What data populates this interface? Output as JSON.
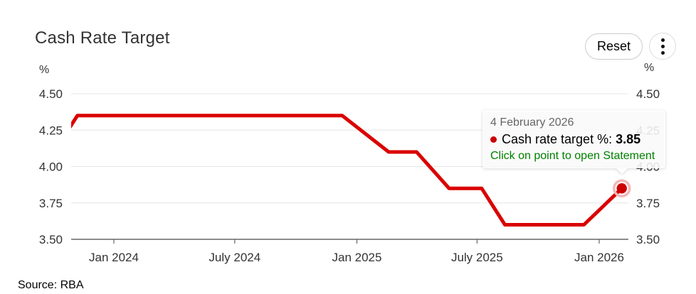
{
  "header": {
    "title": "Cash Rate Target",
    "reset_label": "Reset"
  },
  "source_note": "Source: RBA",
  "tooltip": {
    "date": "4 February 2026",
    "series_label": "Cash rate target %:",
    "value": "3.85",
    "hint": "Click on point to open Statement"
  },
  "colors": {
    "line": "#da0000",
    "marker_fill": "#cc0000",
    "marker_halo": "#f4b6b6",
    "grid": "#e6e6e6",
    "axis": "#666666",
    "tick_label": "#333333",
    "tooltip_date": "#666666",
    "tooltip_hint_green": "#008000"
  },
  "chart_data": {
    "type": "line",
    "title": "Cash Rate Target",
    "unit": "%",
    "ylabel": "%",
    "ylim": [
      3.5,
      4.5
    ],
    "y_ticks": [
      4.5,
      4.25,
      4.0,
      3.75,
      3.5
    ],
    "x_ticks": [
      {
        "date": "2024-01-01",
        "label": "Jan 2024"
      },
      {
        "date": "2024-07-01",
        "label": "July 2024"
      },
      {
        "date": "2025-01-01",
        "label": "Jan 2025"
      },
      {
        "date": "2025-07-01",
        "label": "July 2025"
      },
      {
        "date": "2026-01-01",
        "label": "Jan 2026"
      }
    ],
    "x_domain": [
      "2023-10-29",
      "2026-02-14"
    ],
    "grid": true,
    "legend": false,
    "series": [
      {
        "name": "Cash rate target %",
        "color": "#da0000",
        "points": [
          {
            "date": "2023-10-03",
            "value": 4.1
          },
          {
            "date": "2023-11-07",
            "value": 4.35
          },
          {
            "date": "2024-12-10",
            "value": 4.35
          },
          {
            "date": "2025-02-18",
            "value": 4.1
          },
          {
            "date": "2025-04-01",
            "value": 4.1
          },
          {
            "date": "2025-05-20",
            "value": 3.85
          },
          {
            "date": "2025-07-08",
            "value": 3.85
          },
          {
            "date": "2025-08-12",
            "value": 3.6
          },
          {
            "date": "2025-12-09",
            "value": 3.6
          },
          {
            "date": "2026-02-04",
            "value": 3.85
          }
        ]
      }
    ],
    "highlighted_point": {
      "date": "2026-02-04",
      "value": 3.85
    }
  }
}
